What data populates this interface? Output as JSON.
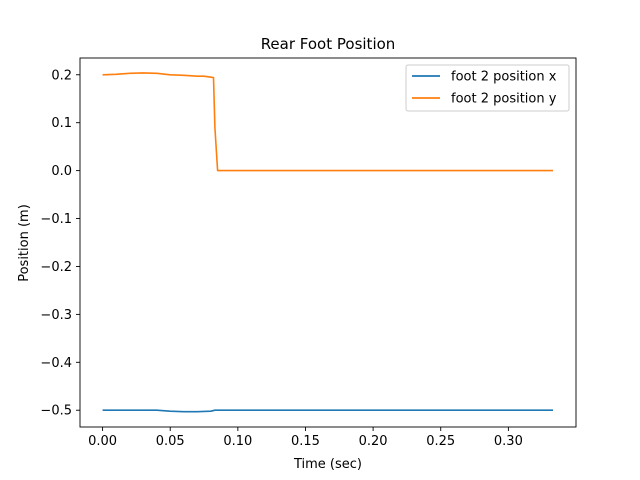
{
  "chart_data": {
    "type": "line",
    "title": "Rear Foot Position",
    "xlabel": "Time (sec)",
    "ylabel": "Position (m)",
    "xlim": [
      -0.0167,
      0.35
    ],
    "ylim": [
      -0.535,
      0.235
    ],
    "xticks": [
      0.0,
      0.05,
      0.1,
      0.15,
      0.2,
      0.25,
      0.3
    ],
    "xtick_labels": [
      "0.00",
      "0.05",
      "0.10",
      "0.15",
      "0.20",
      "0.25",
      "0.30"
    ],
    "yticks": [
      0.2,
      0.1,
      0.0,
      -0.1,
      -0.2,
      -0.3,
      -0.4,
      -0.5
    ],
    "ytick_labels": [
      "0.2",
      "0.1",
      "0.0",
      "−0.1",
      "−0.2",
      "−0.3",
      "−0.4",
      "−0.5"
    ],
    "grid": false,
    "legend_position": "upper right",
    "series": [
      {
        "name": "foot 2 position x",
        "color": "#1f77b4",
        "x": [
          0.0,
          0.02,
          0.04,
          0.05,
          0.06,
          0.07,
          0.08,
          0.083,
          0.1,
          0.15,
          0.2,
          0.25,
          0.3,
          0.333
        ],
        "y": [
          -0.5,
          -0.5,
          -0.5,
          -0.502,
          -0.503,
          -0.503,
          -0.502,
          -0.5,
          -0.5,
          -0.5,
          -0.5,
          -0.5,
          -0.5,
          -0.5
        ]
      },
      {
        "name": "foot 2 position y",
        "color": "#ff7f0e",
        "x": [
          0.0,
          0.01,
          0.02,
          0.03,
          0.04,
          0.05,
          0.06,
          0.07,
          0.075,
          0.082,
          0.083,
          0.085,
          0.1,
          0.15,
          0.2,
          0.25,
          0.3,
          0.333
        ],
        "y": [
          0.2,
          0.201,
          0.203,
          0.204,
          0.203,
          0.2,
          0.199,
          0.197,
          0.197,
          0.194,
          0.09,
          0.0,
          0.0,
          0.0,
          0.0,
          0.0,
          0.0,
          0.0
        ]
      }
    ]
  }
}
